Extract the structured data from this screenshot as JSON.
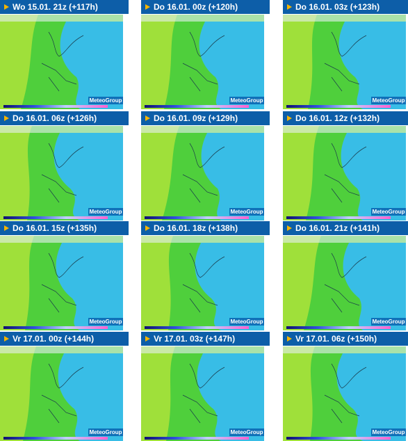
{
  "tiles": [
    {
      "title": "Wo 15.01. 21z (+117h)",
      "logo": "MeteoGroup"
    },
    {
      "title": "Do 16.01. 00z (+120h)",
      "logo": "MeteoGroup"
    },
    {
      "title": "Do 16.01. 03z (+123h)",
      "logo": "MeteoGroup"
    },
    {
      "title": "Do 16.01. 06z (+126h)",
      "logo": "MeteoGroup"
    },
    {
      "title": "Do 16.01. 09z (+129h)",
      "logo": "MeteoGroup"
    },
    {
      "title": "Do 16.01. 12z (+132h)",
      "logo": "MeteoGroup"
    },
    {
      "title": "Do 16.01. 15z (+135h)",
      "logo": "MeteoGroup"
    },
    {
      "title": "Do 16.01. 18z (+138h)",
      "logo": "MeteoGroup"
    },
    {
      "title": "Do 16.01. 21z (+141h)",
      "logo": "MeteoGroup"
    },
    {
      "title": "Vr 17.01. 00z (+144h)",
      "logo": "MeteoGroup"
    },
    {
      "title": "Vr 17.01. 03z (+147h)",
      "logo": "MeteoGroup"
    },
    {
      "title": "Vr 17.01. 06z (+150h)",
      "logo": "MeteoGroup"
    }
  ]
}
